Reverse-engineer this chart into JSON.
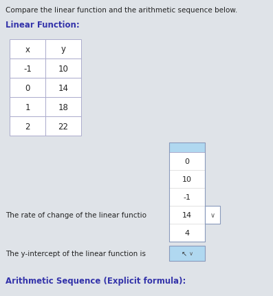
{
  "title": "Compare the linear function and the arithmetic sequence below.",
  "bg_color": "#dfe3e8",
  "section1_title": "Linear Function:",
  "table_headers": [
    "x",
    "y"
  ],
  "table_data": [
    [
      -1,
      10
    ],
    [
      0,
      14
    ],
    [
      1,
      18
    ],
    [
      2,
      22
    ]
  ],
  "rate_of_change_text": "The rate of change of the linear functio",
  "y_intercept_text": "The y-intercept of the linear function is",
  "section2_title": "Arithmetic Sequence (Explicit formula):",
  "dropdown_items": [
    "0",
    "10",
    "-1",
    "14",
    "4"
  ],
  "dropdown_selected": "14",
  "text_color": "#222222",
  "header_color": "#3333aa",
  "font_size_title": 7.5,
  "font_size_section": 8.5,
  "font_size_body": 7.5,
  "font_size_table": 8.5,
  "font_size_dropdown": 8.0
}
